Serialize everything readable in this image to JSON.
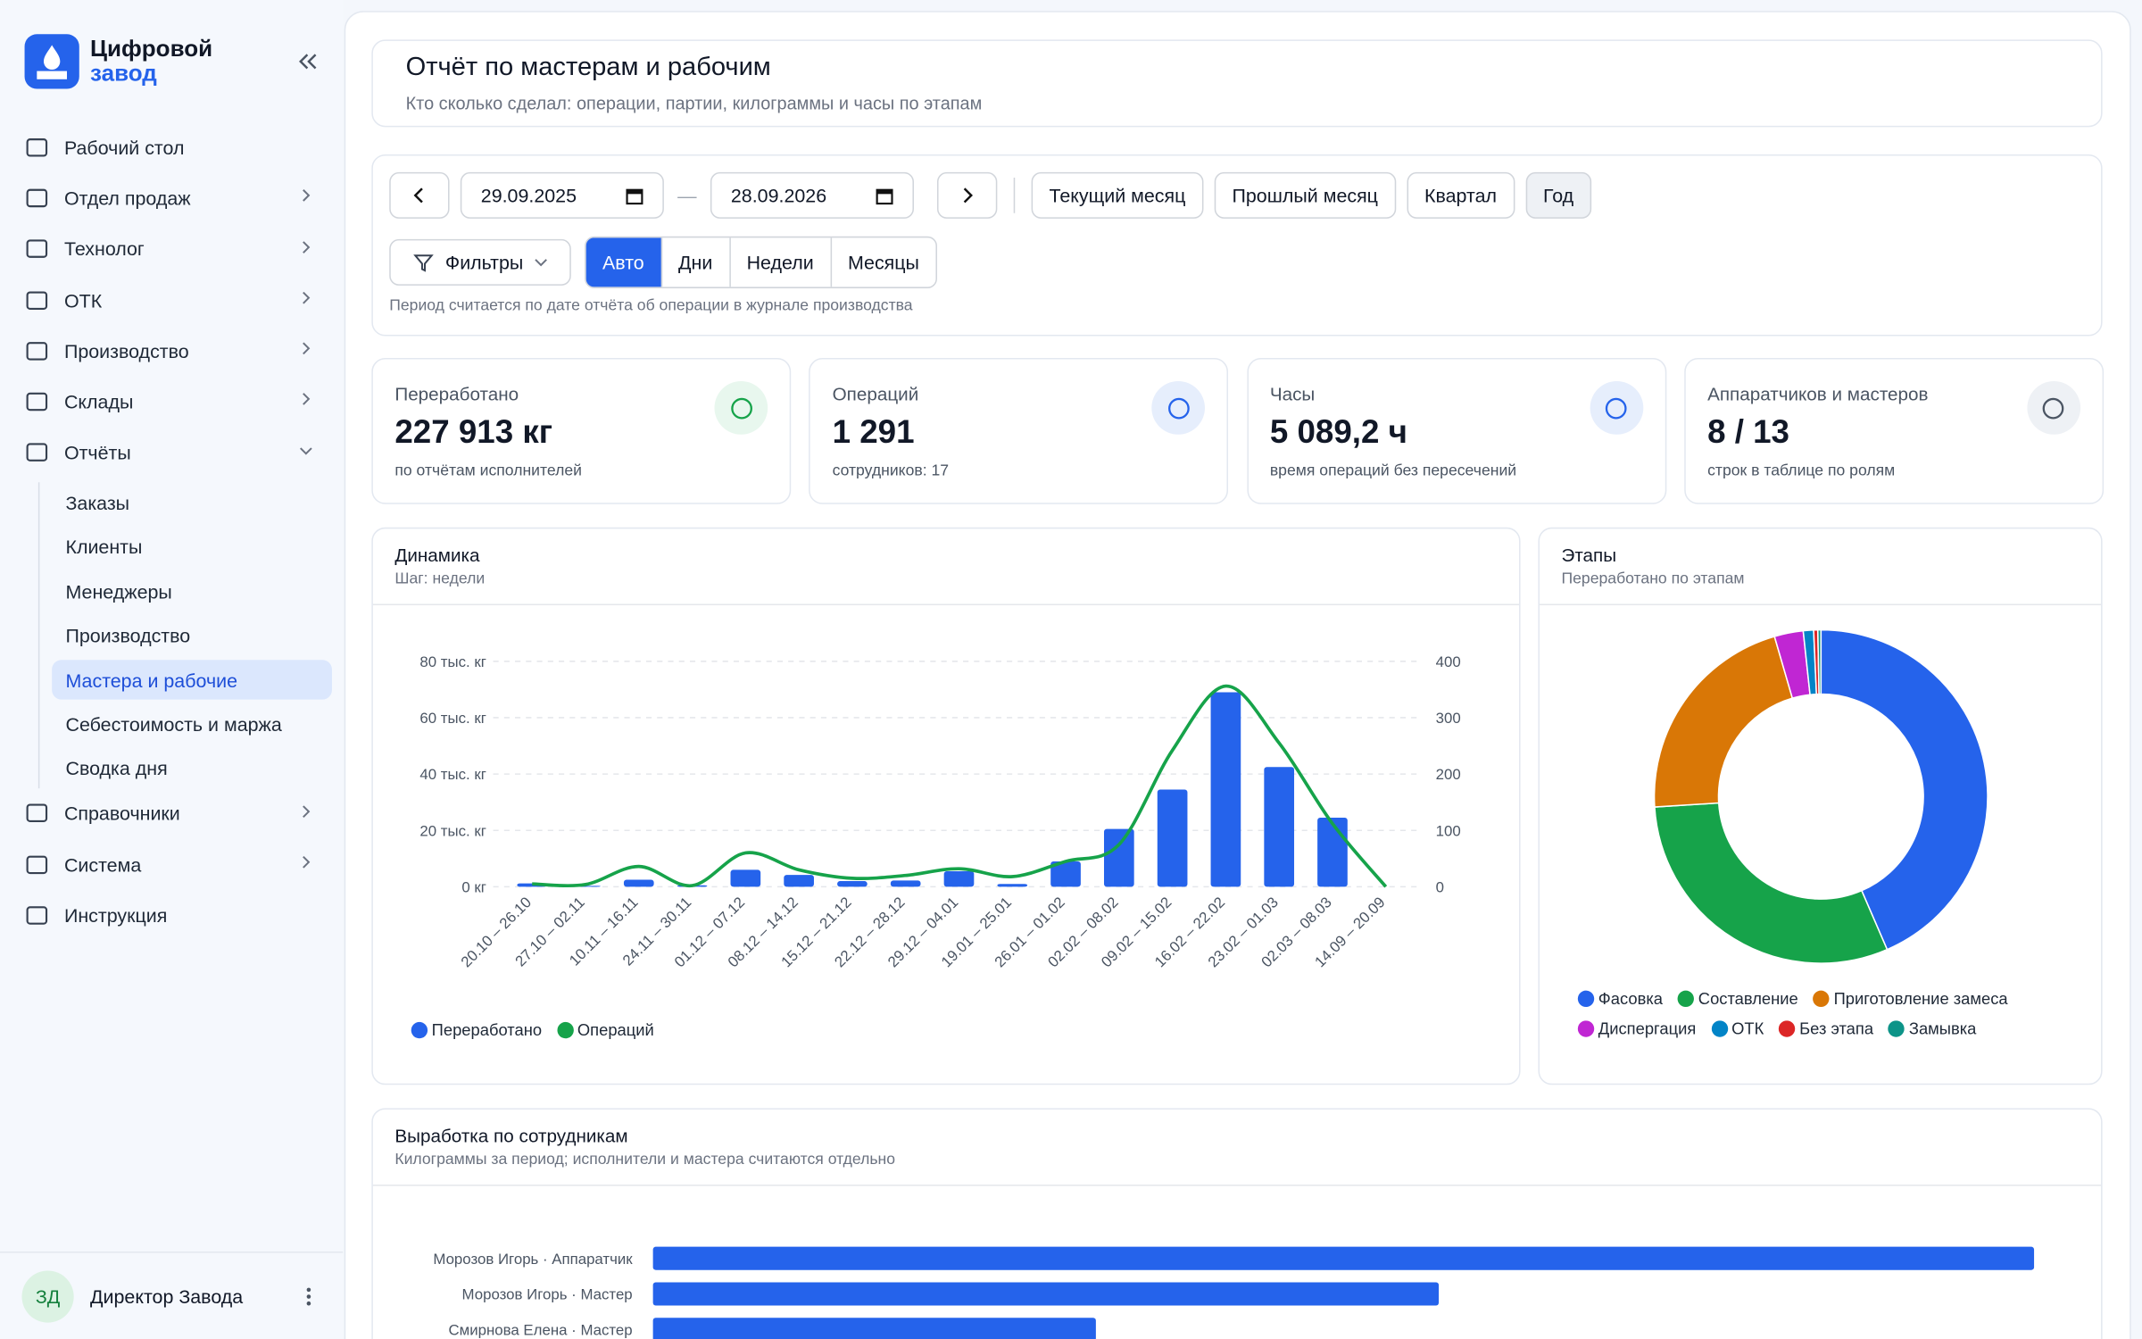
{
  "sidebar": {
    "logo": [
      "Цифровой",
      "завод"
    ],
    "menu": [
      {
        "label": "Рабочий стол"
      },
      {
        "label": "Отдел продаж",
        "has_submenu": true
      },
      {
        "label": "Технолог",
        "has_submenu": true
      },
      {
        "label": "ОТК",
        "has_submenu": true
      },
      {
        "label": "Производство",
        "has_submenu": true
      },
      {
        "label": "Склады",
        "has_submenu": true
      },
      {
        "label": "Отчёты",
        "has_submenu": true,
        "expanded": true,
        "children": [
          {
            "label": "Заказы"
          },
          {
            "label": "Клиенты"
          },
          {
            "label": "Менеджеры"
          },
          {
            "label": "Производство"
          },
          {
            "label": "Мастера и рабочие",
            "active": true
          },
          {
            "label": "Себестоимость и маржа"
          },
          {
            "label": "Сводка дня"
          }
        ]
      },
      {
        "label": "Справочники",
        "has_submenu": true
      },
      {
        "label": "Система",
        "has_submenu": true
      },
      {
        "label": "Инструкция"
      }
    ],
    "user": {
      "initials": "ЗД",
      "name": "Директор Завода"
    }
  },
  "header": {
    "title": "Отчёт по мастерам и рабочим",
    "subtitle": "Кто сколько сделал: операции, партии, килограммы и часы по этапам"
  },
  "filters": {
    "date_from": "29.09.2025",
    "range_separator": "—",
    "date_to": "28.09.2026",
    "presets": [
      {
        "label": "Текущий месяц"
      },
      {
        "label": "Прошлый месяц"
      },
      {
        "label": "Квартал"
      },
      {
        "label": "Год",
        "active": true
      }
    ],
    "filter_button": "Фильтры",
    "steps": [
      {
        "label": "Авто",
        "active": true
      },
      {
        "label": "Дни"
      },
      {
        "label": "Недели"
      },
      {
        "label": "Месяцы"
      }
    ],
    "note": "Период считается по дате отчёта об операции в журнале производства"
  },
  "kpis": [
    {
      "label": "Переработано",
      "value": "227 913 кг",
      "caption": "по отчётам исполнителей",
      "color": "#16a34a",
      "tint": "#e8f7ee"
    },
    {
      "label": "Операций",
      "value": "1 291",
      "caption": "сотрудников: 17",
      "color": "#2563eb",
      "tint": "#e6eefc"
    },
    {
      "label": "Часы",
      "value": "5 089,2 ч",
      "caption": "время операций без пересечений",
      "color": "#2563eb",
      "tint": "#e6eefc"
    },
    {
      "label": "Аппаратчиков и мастеров",
      "value": "8 / 13",
      "caption": "строк в таблице по ролям",
      "color": "#4b5563",
      "tint": "#eef1f5"
    }
  ],
  "chart_data": [
    {
      "type": "bar",
      "title": "Динамика",
      "subtitle": "Шаг: недели",
      "categories": [
        "20.10 – 26.10",
        "27.10 – 02.11",
        "10.11 – 16.11",
        "24.11 – 30.11",
        "01.12 – 07.12",
        "08.12 – 14.12",
        "15.12 – 21.12",
        "22.12 – 28.12",
        "29.12 – 04.01",
        "19.01 – 25.01",
        "26.01 – 01.02",
        "02.02 – 08.02",
        "09.02 – 15.02",
        "16.02 – 22.02",
        "23.02 – 01.03",
        "02.03 – 08.03",
        "14.09 – 20.09"
      ],
      "series": [
        {
          "name": "Переработано",
          "color": "#2563eb",
          "values": [
            1200,
            300,
            2500,
            500,
            6000,
            4200,
            2000,
            2200,
            5500,
            1000,
            9000,
            20500,
            34500,
            69000,
            42500,
            24500,
            0
          ]
        },
        {
          "name": "Операций",
          "type": "line",
          "axis": "y2",
          "color": "#16a34a",
          "values": [
            5,
            4,
            36,
            2,
            60,
            30,
            15,
            20,
            32,
            18,
            45,
            75,
            242,
            356,
            255,
            112,
            0
          ]
        }
      ],
      "ylim": [
        0,
        80000
      ],
      "yticks": [
        {
          "value": 0,
          "label": "0 кг"
        },
        {
          "value": 20000,
          "label": "20 тыс. кг"
        },
        {
          "value": 40000,
          "label": "40 тыс. кг"
        },
        {
          "value": 60000,
          "label": "60 тыс. кг"
        },
        {
          "value": 80000,
          "label": "80 тыс. кг"
        }
      ],
      "y2lim": [
        0,
        400
      ],
      "y2ticks": [
        0,
        100,
        200,
        300,
        400
      ],
      "grid": true
    },
    {
      "type": "donut",
      "title": "Этапы",
      "subtitle": "Переработано по этапам",
      "categories": [
        "Фасовка",
        "Составление",
        "Приготовление замеса",
        "Диспергация",
        "ОТК",
        "Без этапа",
        "Замывка"
      ],
      "values": [
        43.5,
        30.5,
        21.5,
        2.8,
        1.0,
        0.4,
        0.3
      ],
      "colors": [
        "#2563eb",
        "#16a34a",
        "#d97706",
        "#c026d3",
        "#0284c7",
        "#dc2626",
        "#0d9488"
      ]
    },
    {
      "type": "hbar",
      "title": "Выработка по сотрудникам",
      "subtitle": "Килограммы за период; исполнители и мастера считаются отдельно",
      "categories": [
        "Морозов Игорь · Аппаратчик",
        "Морозов Игорь · Мастер",
        "Смирнова Елена · Мастер"
      ],
      "values": [
        58000,
        33000,
        18600
      ],
      "color": "#2563eb"
    }
  ]
}
